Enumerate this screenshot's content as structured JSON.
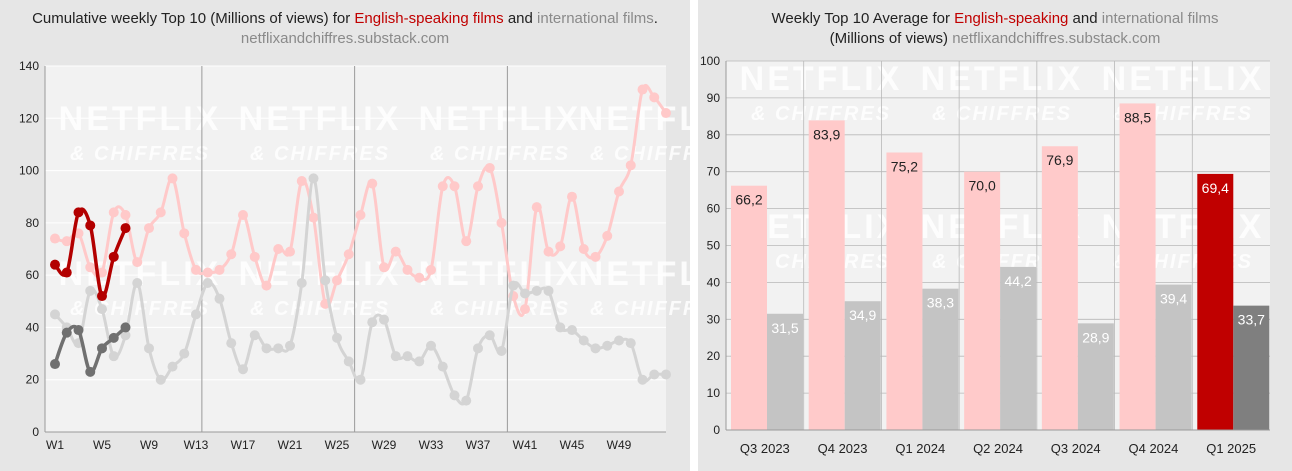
{
  "left_chart": {
    "title": {
      "part1": "Cumulative weekly Top 10 (Millions of views) for ",
      "english": "English-speaking films",
      "part2": " and ",
      "international": "international films",
      "part3": "."
    },
    "source": "netflixandchiffres.substack.com",
    "watermark": {
      "line1": "NETFLIX",
      "line2": "& CHIFFRES"
    }
  },
  "right_chart": {
    "title": {
      "part1": "Weekly Top 10 Average for ",
      "english": "English-speaking",
      "part2": " and ",
      "international": "international films",
      "line2": "(Millions of views) "
    },
    "source": "netflixandchiffres.substack.com",
    "watermark": {
      "line1": "NETFLIX",
      "line2": "& CHIFFRES"
    }
  },
  "colors": {
    "eng_current": "#b30000",
    "int_current": "#707070",
    "eng_past": "#ffc9c9",
    "int_past": "#d4d4d4",
    "eng_bar_past": "#ffcaca",
    "int_bar_past": "#c4c4c4",
    "eng_bar_current": "#c00000",
    "int_bar_current": "#7f7f7f"
  },
  "chart_data": [
    {
      "type": "line",
      "ylim": [
        0,
        140
      ],
      "yticks": [
        0,
        20,
        40,
        60,
        80,
        100,
        120,
        140
      ],
      "xlim": [
        1,
        53
      ],
      "xticks": [
        "W1",
        "W5",
        "W9",
        "W13",
        "W17",
        "W21",
        "W25",
        "W29",
        "W33",
        "W37",
        "W41",
        "W45",
        "W49"
      ],
      "quarter_dividers": [
        13,
        26,
        39
      ],
      "grid": true,
      "series": [
        {
          "style": "english-past",
          "x": [
            1,
            2,
            3,
            4,
            5,
            6,
            7,
            8,
            9,
            10,
            11,
            12,
            13,
            14,
            15,
            16,
            17,
            18,
            19,
            20,
            21,
            22,
            23,
            24,
            25,
            26,
            27,
            28,
            29,
            30,
            31,
            32,
            33,
            34,
            35,
            36,
            37,
            38,
            39,
            40,
            41,
            42,
            43,
            44,
            45,
            46,
            47,
            48,
            49,
            50,
            51,
            52,
            53
          ],
          "values": [
            74,
            73,
            76,
            63,
            61,
            84,
            83,
            65,
            78,
            84,
            97,
            76,
            62,
            61,
            62,
            68,
            83,
            67,
            56,
            70,
            69,
            96,
            82,
            49,
            58,
            68,
            83,
            95,
            63,
            69,
            62,
            59,
            62,
            94,
            94,
            73,
            94,
            101,
            80,
            52,
            47,
            86,
            69,
            71,
            90,
            70,
            67,
            75,
            92,
            102,
            131,
            128,
            122
          ]
        },
        {
          "style": "international-past",
          "x": [
            1,
            2,
            3,
            4,
            5,
            6,
            7,
            8,
            9,
            10,
            11,
            12,
            13,
            14,
            15,
            16,
            17,
            18,
            19,
            20,
            21,
            22,
            23,
            24,
            25,
            26,
            27,
            28,
            29,
            30,
            31,
            32,
            33,
            34,
            35,
            36,
            37,
            38,
            39,
            40,
            41,
            42,
            43,
            44,
            45,
            46,
            47,
            48,
            49,
            50,
            51,
            52,
            53
          ],
          "values": [
            45,
            40,
            34,
            54,
            47,
            29,
            37,
            57,
            32,
            20,
            25,
            30,
            45,
            57,
            51,
            34,
            24,
            37,
            32,
            32,
            33,
            57,
            97,
            58,
            36,
            27,
            20,
            42,
            43,
            29,
            29,
            27,
            33,
            25,
            14,
            12,
            32,
            37,
            31,
            56,
            53,
            54,
            54,
            40,
            39,
            35,
            32,
            33,
            35,
            34,
            20,
            22,
            22
          ]
        },
        {
          "style": "english-current",
          "x": [
            1,
            2,
            3,
            4,
            5,
            6,
            7,
            8
          ],
          "values": [
            64,
            61,
            84,
            79,
            52,
            67,
            78,
            null
          ]
        },
        {
          "style": "international-current",
          "x": [
            1,
            2,
            3,
            4,
            5,
            6,
            7,
            8
          ],
          "values": [
            26,
            38,
            39,
            23,
            32,
            36,
            40,
            null
          ]
        }
      ]
    },
    {
      "type": "bar",
      "ylim": [
        0,
        100
      ],
      "yticks": [
        0,
        10,
        20,
        30,
        40,
        50,
        60,
        70,
        80,
        90,
        100
      ],
      "categories": [
        "Q3 2023",
        "Q4 2023",
        "Q1 2024",
        "Q2 2024",
        "Q3 2024",
        "Q4 2024",
        "Q1 2025"
      ],
      "series": [
        {
          "style": "english",
          "values": [
            66.2,
            83.9,
            75.2,
            70.0,
            76.9,
            88.5,
            69.4
          ],
          "labels": [
            "66,2",
            "83,9",
            "75,2",
            "70,0",
            "76,9",
            "88,5",
            "69,4"
          ]
        },
        {
          "style": "international",
          "values": [
            31.5,
            34.9,
            38.3,
            44.2,
            28.9,
            39.4,
            33.7
          ],
          "labels": [
            "31,5",
            "34,9",
            "38,3",
            "44,2",
            "28,9",
            "39,4",
            "33,7"
          ]
        }
      ],
      "grid": true
    }
  ]
}
